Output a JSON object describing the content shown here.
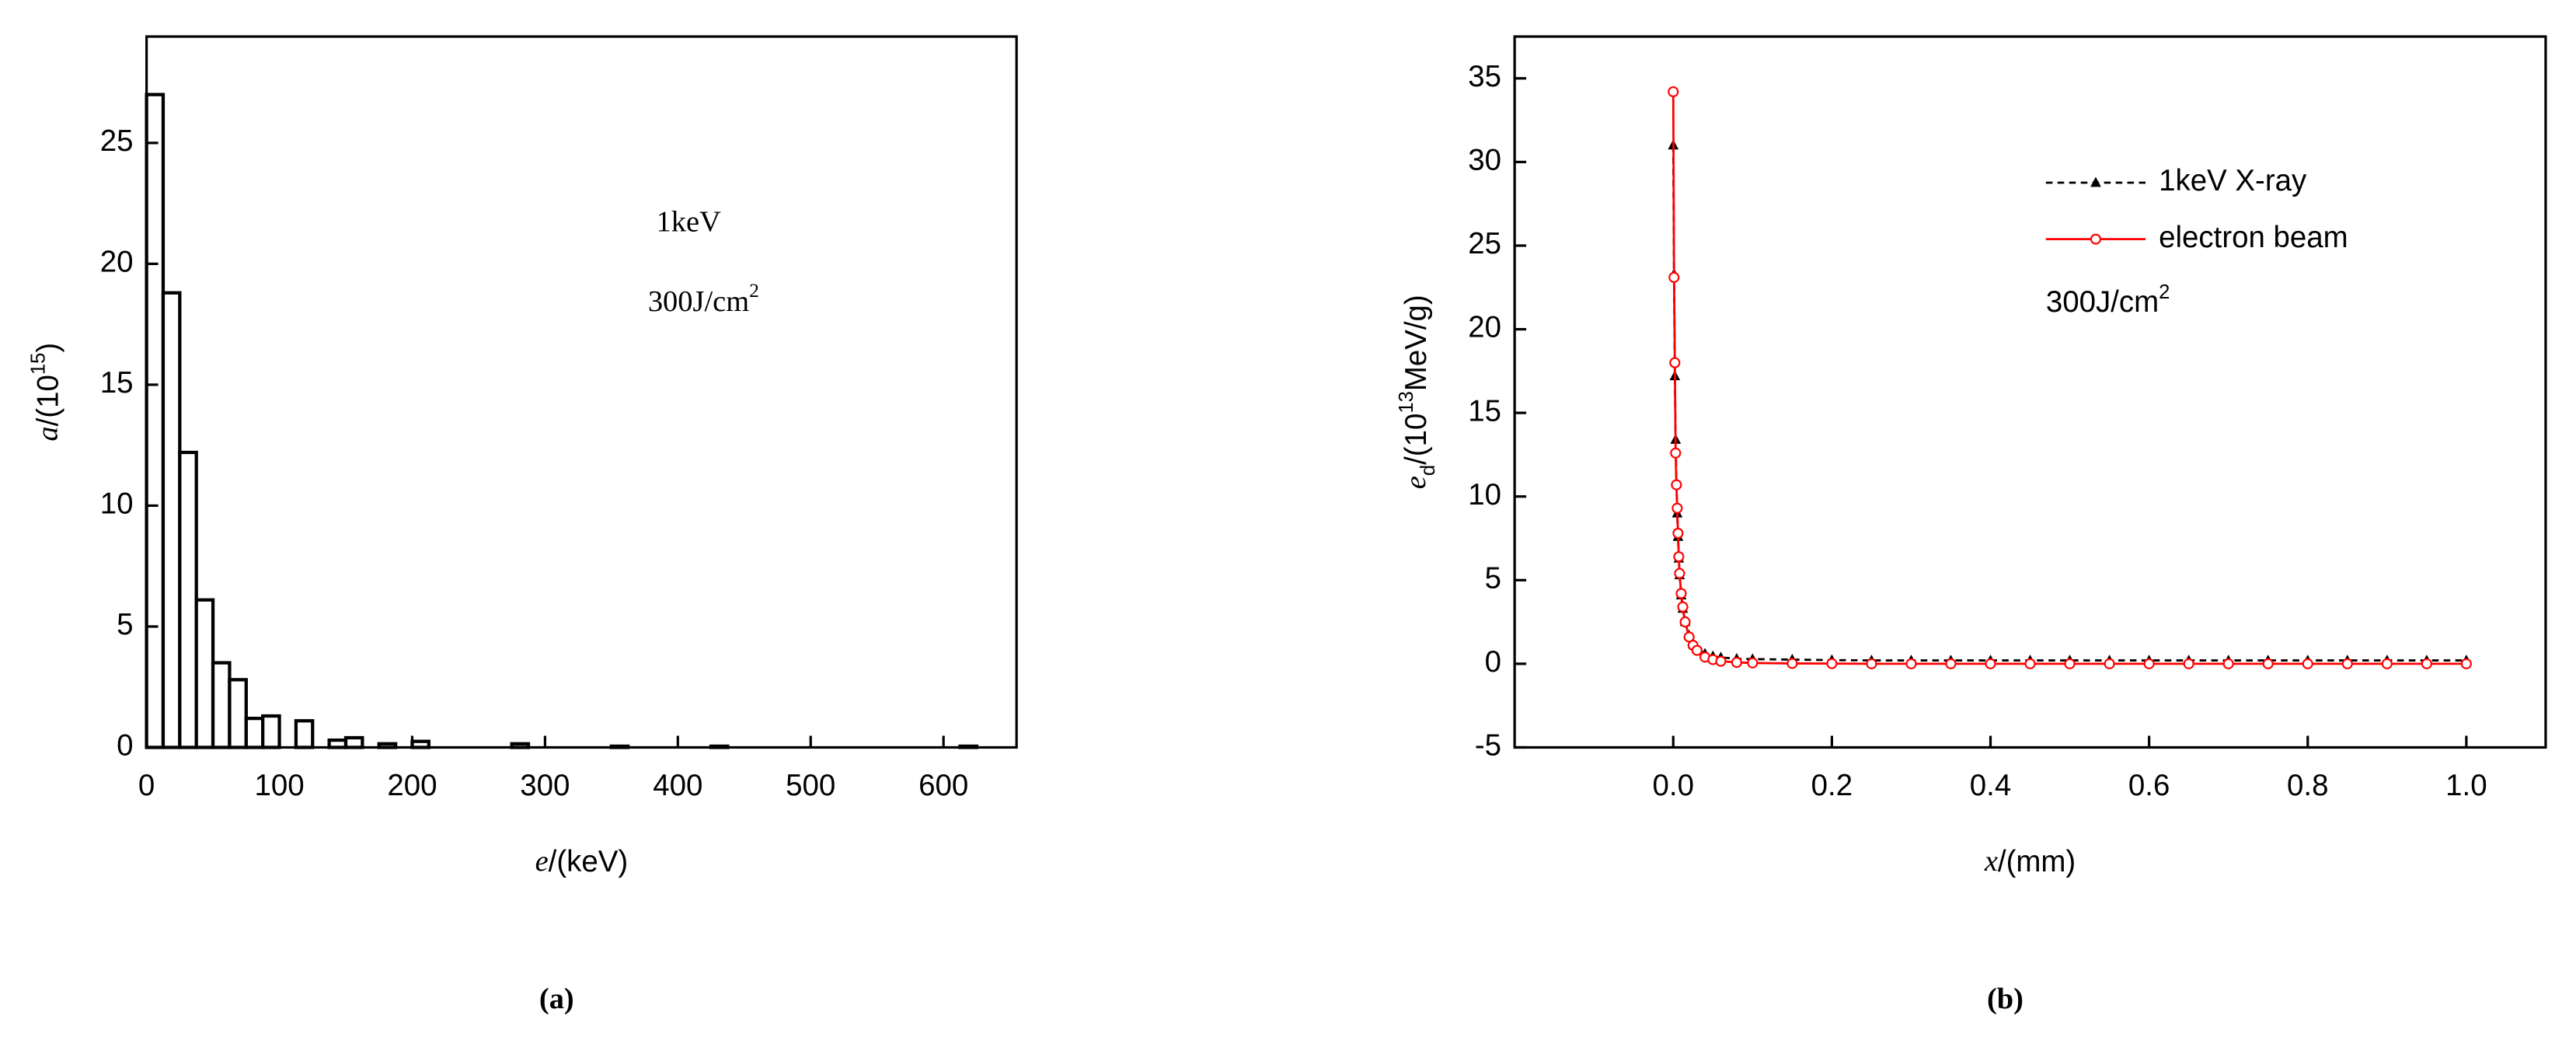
{
  "chart_data": [
    {
      "type": "histogram",
      "panel_label": "(a)",
      "xlabel": [
        {
          "text": "e",
          "style": "italic"
        },
        {
          "text": "/(keV)"
        }
      ],
      "ylabel": [
        {
          "text": "a",
          "style": "italic"
        },
        {
          "text": "/(10"
        },
        {
          "text": "15",
          "style": "sup"
        },
        {
          "text": ")"
        }
      ],
      "annotations": [
        [
          {
            "text": "1keV"
          }
        ],
        [
          {
            "text": "300J/cm"
          },
          {
            "text": "2",
            "style": "sup"
          }
        ]
      ],
      "bins": [
        0,
        12.5,
        25,
        37.5,
        50,
        62.5,
        75,
        87.5,
        100,
        112.5,
        125,
        137.5,
        150,
        162.5,
        175,
        187.5,
        200,
        212.5,
        225,
        237.5,
        250,
        262.5,
        275,
        287.5,
        300,
        312.5,
        325,
        337.5,
        350,
        362.5,
        375,
        387.5,
        400,
        412.5,
        425,
        437.5,
        450,
        462.5,
        475,
        487.5,
        500,
        512.5,
        525,
        537.5,
        550,
        562.5,
        575,
        587.5,
        600,
        612.5,
        625
      ],
      "values": [
        27,
        18.8,
        12.2,
        6.1,
        3.5,
        2.8,
        1.2,
        1.3,
        0,
        1.1,
        0,
        0.3,
        0.4,
        0,
        0.15,
        0,
        0.25,
        0,
        0,
        0,
        0,
        0,
        0.15,
        0,
        0,
        0,
        0,
        0,
        0.05,
        0,
        0,
        0,
        0,
        0,
        0.05,
        0,
        0,
        0,
        0,
        0,
        0,
        0,
        0,
        0,
        0,
        0,
        0,
        0,
        0,
        0.05
      ],
      "color": "#ffffff",
      "xlim": [
        0,
        655
      ],
      "xticks": [
        0,
        100,
        200,
        300,
        400,
        500,
        600
      ],
      "ylim": [
        0,
        29.4
      ],
      "yticks": [
        0,
        5,
        10,
        15,
        20,
        25
      ]
    },
    {
      "type": "line",
      "panel_label": "(b)",
      "xlabel": [
        {
          "text": "x",
          "style": "italic"
        },
        {
          "text": "/(mm)"
        }
      ],
      "ylabel": [
        {
          "text": "e",
          "style": "italic"
        },
        {
          "text": "d",
          "style": "sub"
        },
        {
          "text": "/(10"
        },
        {
          "text": "13",
          "style": "sup"
        },
        {
          "text": "MeV/g)"
        }
      ],
      "annotations": [
        [
          {
            "text": "300J/cm"
          },
          {
            "text": "2",
            "style": "sup"
          }
        ]
      ],
      "x": [
        0,
        0.001,
        0.002,
        0.003,
        0.004,
        0.005,
        0.006,
        0.007,
        0.008,
        0.01,
        0.012,
        0.015,
        0.02,
        0.025,
        0.03,
        0.04,
        0.05,
        0.06,
        0.08,
        0.1,
        0.15,
        0.2,
        0.25,
        0.3,
        0.35,
        0.4,
        0.45,
        0.5,
        0.55,
        0.6,
        0.65,
        0.7,
        0.75,
        0.8,
        0.85,
        0.9,
        0.95,
        1.0
      ],
      "series": [
        {
          "name": "1keV X-ray",
          "color": "#000000",
          "dash": true,
          "marker": "triangle",
          "values": [
            31,
            23.3,
            17.2,
            13.4,
            10.8,
            9,
            7.6,
            6.3,
            5.3,
            4.1,
            3.3,
            2.5,
            1.7,
            1.2,
            0.9,
            0.6,
            0.45,
            0.38,
            0.3,
            0.28,
            0.25,
            0.22,
            0.2,
            0.2,
            0.2,
            0.2,
            0.2,
            0.2,
            0.2,
            0.2,
            0.2,
            0.2,
            0.2,
            0.2,
            0.2,
            0.2,
            0.2,
            0.2
          ]
        },
        {
          "name": "electron beam",
          "color": "#ff0000",
          "dash": false,
          "marker": "circle",
          "values": [
            34.2,
            23.1,
            18,
            12.6,
            10.7,
            9.3,
            7.8,
            6.4,
            5.4,
            4.2,
            3.4,
            2.5,
            1.6,
            1.1,
            0.8,
            0.4,
            0.25,
            0.15,
            0.08,
            0.05,
            0.02,
            0.01,
            0,
            0,
            0,
            0,
            0,
            0,
            0,
            0,
            0,
            0,
            0,
            0,
            0,
            0,
            0,
            0
          ]
        }
      ],
      "xlim": [
        -0.2,
        1.1
      ],
      "xticks": [
        {
          "value": 0,
          "label": "0.0"
        },
        {
          "value": 0.2,
          "label": "0.2"
        },
        {
          "value": 0.4,
          "label": "0.4"
        },
        {
          "value": 0.6,
          "label": "0.6"
        },
        {
          "value": 0.8,
          "label": "0.8"
        },
        {
          "value": 1,
          "label": "1.0"
        }
      ],
      "ylim": [
        -5,
        37.5
      ],
      "yticks": [
        -5,
        0,
        5,
        10,
        15,
        20,
        25,
        30,
        35
      ]
    }
  ]
}
